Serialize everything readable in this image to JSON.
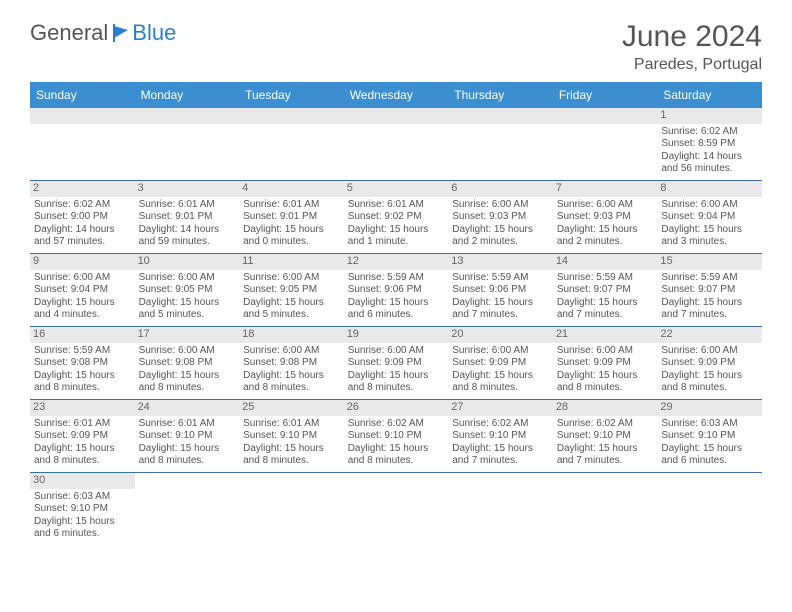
{
  "logo": {
    "text1": "General",
    "text2": "Blue",
    "accent_color": "#2b7fce"
  },
  "title": "June 2024",
  "location": "Paredes, Portugal",
  "colors": {
    "header_bg": "#3b8ed0",
    "header_text": "#ffffff",
    "daynum_bg": "#e9e9e9",
    "cell_border": "#3b6fa5",
    "blank_bg": "#f2f2f2",
    "text": "#555555"
  },
  "weekdays": [
    "Sunday",
    "Monday",
    "Tuesday",
    "Wednesday",
    "Thursday",
    "Friday",
    "Saturday"
  ],
  "rows": [
    [
      null,
      null,
      null,
      null,
      null,
      null,
      {
        "n": "1",
        "sunrise": "Sunrise: 6:02 AM",
        "sunset": "Sunset: 8:59 PM",
        "daylight": "Daylight: 14 hours and 56 minutes."
      }
    ],
    [
      {
        "n": "2",
        "sunrise": "Sunrise: 6:02 AM",
        "sunset": "Sunset: 9:00 PM",
        "daylight": "Daylight: 14 hours and 57 minutes."
      },
      {
        "n": "3",
        "sunrise": "Sunrise: 6:01 AM",
        "sunset": "Sunset: 9:01 PM",
        "daylight": "Daylight: 14 hours and 59 minutes."
      },
      {
        "n": "4",
        "sunrise": "Sunrise: 6:01 AM",
        "sunset": "Sunset: 9:01 PM",
        "daylight": "Daylight: 15 hours and 0 minutes."
      },
      {
        "n": "5",
        "sunrise": "Sunrise: 6:01 AM",
        "sunset": "Sunset: 9:02 PM",
        "daylight": "Daylight: 15 hours and 1 minute."
      },
      {
        "n": "6",
        "sunrise": "Sunrise: 6:00 AM",
        "sunset": "Sunset: 9:03 PM",
        "daylight": "Daylight: 15 hours and 2 minutes."
      },
      {
        "n": "7",
        "sunrise": "Sunrise: 6:00 AM",
        "sunset": "Sunset: 9:03 PM",
        "daylight": "Daylight: 15 hours and 2 minutes."
      },
      {
        "n": "8",
        "sunrise": "Sunrise: 6:00 AM",
        "sunset": "Sunset: 9:04 PM",
        "daylight": "Daylight: 15 hours and 3 minutes."
      }
    ],
    [
      {
        "n": "9",
        "sunrise": "Sunrise: 6:00 AM",
        "sunset": "Sunset: 9:04 PM",
        "daylight": "Daylight: 15 hours and 4 minutes."
      },
      {
        "n": "10",
        "sunrise": "Sunrise: 6:00 AM",
        "sunset": "Sunset: 9:05 PM",
        "daylight": "Daylight: 15 hours and 5 minutes."
      },
      {
        "n": "11",
        "sunrise": "Sunrise: 6:00 AM",
        "sunset": "Sunset: 9:05 PM",
        "daylight": "Daylight: 15 hours and 5 minutes."
      },
      {
        "n": "12",
        "sunrise": "Sunrise: 5:59 AM",
        "sunset": "Sunset: 9:06 PM",
        "daylight": "Daylight: 15 hours and 6 minutes."
      },
      {
        "n": "13",
        "sunrise": "Sunrise: 5:59 AM",
        "sunset": "Sunset: 9:06 PM",
        "daylight": "Daylight: 15 hours and 7 minutes."
      },
      {
        "n": "14",
        "sunrise": "Sunrise: 5:59 AM",
        "sunset": "Sunset: 9:07 PM",
        "daylight": "Daylight: 15 hours and 7 minutes."
      },
      {
        "n": "15",
        "sunrise": "Sunrise: 5:59 AM",
        "sunset": "Sunset: 9:07 PM",
        "daylight": "Daylight: 15 hours and 7 minutes."
      }
    ],
    [
      {
        "n": "16",
        "sunrise": "Sunrise: 5:59 AM",
        "sunset": "Sunset: 9:08 PM",
        "daylight": "Daylight: 15 hours and 8 minutes."
      },
      {
        "n": "17",
        "sunrise": "Sunrise: 6:00 AM",
        "sunset": "Sunset: 9:08 PM",
        "daylight": "Daylight: 15 hours and 8 minutes."
      },
      {
        "n": "18",
        "sunrise": "Sunrise: 6:00 AM",
        "sunset": "Sunset: 9:08 PM",
        "daylight": "Daylight: 15 hours and 8 minutes."
      },
      {
        "n": "19",
        "sunrise": "Sunrise: 6:00 AM",
        "sunset": "Sunset: 9:09 PM",
        "daylight": "Daylight: 15 hours and 8 minutes."
      },
      {
        "n": "20",
        "sunrise": "Sunrise: 6:00 AM",
        "sunset": "Sunset: 9:09 PM",
        "daylight": "Daylight: 15 hours and 8 minutes."
      },
      {
        "n": "21",
        "sunrise": "Sunrise: 6:00 AM",
        "sunset": "Sunset: 9:09 PM",
        "daylight": "Daylight: 15 hours and 8 minutes."
      },
      {
        "n": "22",
        "sunrise": "Sunrise: 6:00 AM",
        "sunset": "Sunset: 9:09 PM",
        "daylight": "Daylight: 15 hours and 8 minutes."
      }
    ],
    [
      {
        "n": "23",
        "sunrise": "Sunrise: 6:01 AM",
        "sunset": "Sunset: 9:09 PM",
        "daylight": "Daylight: 15 hours and 8 minutes."
      },
      {
        "n": "24",
        "sunrise": "Sunrise: 6:01 AM",
        "sunset": "Sunset: 9:10 PM",
        "daylight": "Daylight: 15 hours and 8 minutes."
      },
      {
        "n": "25",
        "sunrise": "Sunrise: 6:01 AM",
        "sunset": "Sunset: 9:10 PM",
        "daylight": "Daylight: 15 hours and 8 minutes."
      },
      {
        "n": "26",
        "sunrise": "Sunrise: 6:02 AM",
        "sunset": "Sunset: 9:10 PM",
        "daylight": "Daylight: 15 hours and 8 minutes."
      },
      {
        "n": "27",
        "sunrise": "Sunrise: 6:02 AM",
        "sunset": "Sunset: 9:10 PM",
        "daylight": "Daylight: 15 hours and 7 minutes."
      },
      {
        "n": "28",
        "sunrise": "Sunrise: 6:02 AM",
        "sunset": "Sunset: 9:10 PM",
        "daylight": "Daylight: 15 hours and 7 minutes."
      },
      {
        "n": "29",
        "sunrise": "Sunrise: 6:03 AM",
        "sunset": "Sunset: 9:10 PM",
        "daylight": "Daylight: 15 hours and 6 minutes."
      }
    ],
    [
      {
        "n": "30",
        "sunrise": "Sunrise: 6:03 AM",
        "sunset": "Sunset: 9:10 PM",
        "daylight": "Daylight: 15 hours and 6 minutes."
      },
      null,
      null,
      null,
      null,
      null,
      null
    ]
  ]
}
